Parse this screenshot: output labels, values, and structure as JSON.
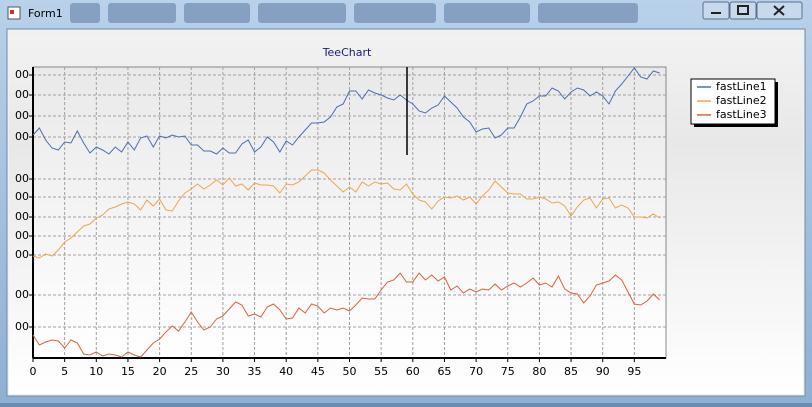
{
  "window": {
    "title": "Form1"
  },
  "chart_data": {
    "type": "line",
    "title": "TeeChart",
    "x": [
      0,
      1,
      2,
      3,
      4,
      5,
      6,
      7,
      8,
      9,
      10,
      11,
      12,
      13,
      14,
      15,
      16,
      17,
      18,
      19,
      20,
      21,
      22,
      23,
      24,
      25,
      26,
      27,
      28,
      29,
      30,
      31,
      32,
      33,
      34,
      35,
      36,
      37,
      38,
      39,
      40,
      41,
      42,
      43,
      44,
      45,
      46,
      47,
      48,
      49,
      50,
      51,
      52,
      53,
      54,
      55,
      56,
      57,
      58,
      59,
      60,
      61,
      62,
      63,
      64,
      65,
      66,
      67,
      68,
      69,
      70,
      71,
      72,
      73,
      74,
      75,
      76,
      77,
      78,
      79,
      80,
      81,
      82,
      83,
      84,
      85,
      86,
      87,
      88,
      89,
      90,
      91,
      92,
      93,
      94,
      95,
      96,
      97,
      98,
      99
    ],
    "xlim": [
      0,
      100
    ],
    "xticks": [
      0,
      5,
      10,
      15,
      20,
      25,
      30,
      35,
      40,
      45,
      50,
      55,
      60,
      65,
      70,
      75,
      80,
      85,
      90,
      95
    ],
    "ylim": [
      0,
      291
    ],
    "yticks": [
      {
        "value": 283,
        "label": "00"
      },
      {
        "value": 263,
        "label": "00"
      },
      {
        "value": 242,
        "label": "00"
      },
      {
        "value": 221,
        "label": "00"
      },
      {
        "value": 179,
        "label": "00"
      },
      {
        "value": 161,
        "label": "00"
      },
      {
        "value": 141,
        "label": "00"
      },
      {
        "value": 122,
        "label": "00"
      },
      {
        "value": 103,
        "label": "00"
      },
      {
        "value": 63,
        "label": "00"
      },
      {
        "value": 31,
        "label": "00"
      }
    ],
    "grid": true,
    "legend": "right",
    "series": [
      {
        "name": "fastLine1",
        "color": "#4a6eb5",
        "values": [
          223,
          230,
          218,
          210,
          208,
          216,
          215,
          227,
          215,
          205,
          211,
          208,
          204,
          211,
          206,
          216,
          208,
          220,
          222,
          211,
          222,
          220,
          223,
          221,
          222,
          213,
          213,
          207,
          207,
          204,
          210,
          205,
          205,
          214,
          218,
          206,
          211,
          221,
          216,
          206,
          217,
          213,
          221,
          228,
          235,
          235,
          236,
          241,
          251,
          254,
          267,
          267,
          259,
          268,
          265,
          263,
          260,
          258,
          263,
          258,
          254,
          247,
          245,
          250,
          253,
          262,
          256,
          250,
          241,
          236,
          226,
          229,
          230,
          220,
          223,
          230,
          230,
          241,
          254,
          257,
          262,
          262,
          270,
          267,
          259,
          266,
          270,
          268,
          262,
          266,
          262,
          254,
          267,
          274,
          282,
          290,
          281,
          279,
          287,
          285
        ]
      },
      {
        "name": "fastLine2",
        "color": "#f2a54a",
        "values": [
          102,
          100,
          104,
          102,
          108,
          116,
          120,
          126,
          132,
          134,
          140,
          143,
          149,
          151,
          154,
          156,
          154,
          148,
          158,
          152,
          159,
          148,
          147,
          157,
          165,
          169,
          174,
          169,
          173,
          178,
          173,
          180,
          172,
          174,
          168,
          175,
          173,
          173,
          172,
          165,
          174,
          173,
          176,
          182,
          188,
          188,
          185,
          178,
          172,
          166,
          171,
          166,
          176,
          172,
          176,
          174,
          175,
          169,
          168,
          174,
          164,
          158,
          156,
          149,
          157,
          161,
          160,
          162,
          158,
          161,
          154,
          162,
          168,
          177,
          171,
          165,
          164,
          164,
          159,
          159,
          161,
          159,
          155,
          156,
          152,
          142,
          151,
          158,
          160,
          150,
          159,
          160,
          150,
          153,
          150,
          141,
          141,
          140,
          144,
          140
        ]
      },
      {
        "name": "fastLine3",
        "color": "#e0603a",
        "values": [
          23,
          13,
          16,
          18,
          17,
          10,
          18,
          15,
          4,
          3,
          6,
          2,
          4,
          3,
          1,
          6,
          3,
          1,
          8,
          15,
          19,
          26,
          32,
          27,
          36,
          46,
          36,
          28,
          31,
          39,
          42,
          49,
          56,
          53,
          42,
          44,
          41,
          51,
          54,
          48,
          39,
          40,
          50,
          45,
          54,
          52,
          45,
          50,
          48,
          50,
          47,
          53,
          60,
          59,
          59,
          68,
          76,
          78,
          85,
          76,
          76,
          85,
          78,
          83,
          77,
          81,
          68,
          72,
          65,
          69,
          66,
          69,
          68,
          74,
          68,
          72,
          75,
          71,
          75,
          80,
          73,
          75,
          71,
          82,
          69,
          65,
          64,
          55,
          62,
          73,
          75,
          77,
          83,
          78,
          66,
          54,
          53,
          57,
          64,
          58
        ]
      }
    ]
  }
}
